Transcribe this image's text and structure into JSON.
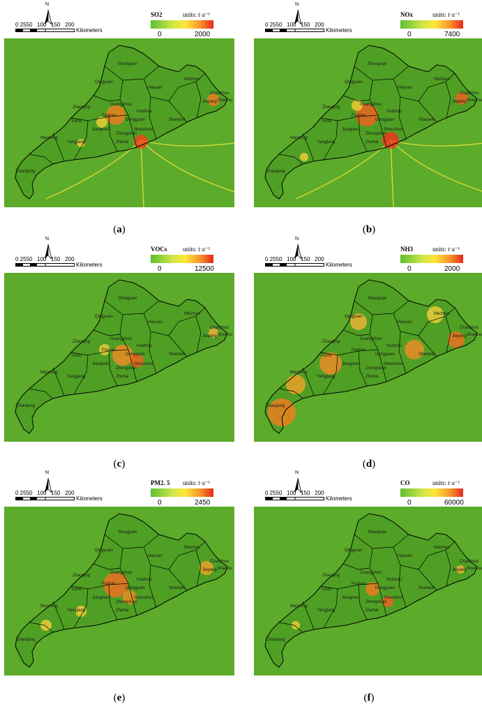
{
  "panels": [
    {
      "caption_letter": "a",
      "pollutant": "SO2",
      "units": "units: t·a⁻¹",
      "min": "0",
      "max": "2000"
    },
    {
      "caption_letter": "b",
      "pollutant": "NOx",
      "units": "units: t·a⁻¹",
      "min": "0",
      "max": "7400"
    },
    {
      "caption_letter": "c",
      "pollutant": "VOCs",
      "units": "units: t·a⁻¹",
      "min": "0",
      "max": "12500"
    },
    {
      "caption_letter": "d",
      "pollutant": "NH3",
      "units": "units: t·a⁻¹",
      "min": "0",
      "max": "2000"
    },
    {
      "caption_letter": "e",
      "pollutant": "PM2. 5",
      "units": "units: t·a⁻¹",
      "min": "0",
      "max": "2450"
    },
    {
      "caption_letter": "f",
      "pollutant": "CO",
      "units": "units: t·a⁻¹",
      "min": "0",
      "max": "60000"
    }
  ],
  "scale": {
    "ticks": "0 2550   100   150   200",
    "unit": "Kilometers",
    "north": "N"
  },
  "cities": [
    "Shaoguan",
    "Qingyuan",
    "Heyuan",
    "Meizhou",
    "Chaozhou",
    "Zhaoqing",
    "Guangzhou",
    "Huizhou",
    "Jieyang",
    "Shantou",
    "Foshan",
    "Dongguan",
    "Shanwei",
    "Yunfu",
    "Jiangmen",
    "Shenzhen",
    "Zhongshan",
    "Zhuhai",
    "Maoming",
    "Yangjiang",
    "Zhanjiang"
  ],
  "colors": {
    "background": "#5cab2a",
    "legend_low": "#5cbf2f",
    "legend_mid": "#ffe63a",
    "legend_high": "#e4271c"
  }
}
